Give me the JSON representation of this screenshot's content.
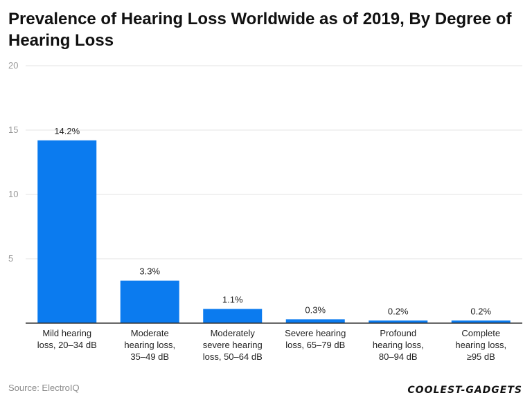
{
  "title": "Prevalence of Hearing Loss Worldwide as of 2019, By Degree of Hearing Loss",
  "source": "Source: ElectroIQ",
  "logo_text": "COOLEST-GADGETS",
  "colors": {
    "bar": "#0b7bef",
    "grid": "#e3e3e3",
    "axis": "#333333"
  },
  "chart_data": {
    "type": "bar",
    "title": "Prevalence of Hearing Loss Worldwide as of 2019, By Degree of Hearing Loss",
    "xlabel": "",
    "ylabel": "",
    "ylim": [
      0,
      20
    ],
    "yticks": [
      0,
      5,
      10,
      15,
      20
    ],
    "ytick_labels": [
      "",
      "5",
      "10",
      "15",
      "20"
    ],
    "grid": true,
    "categories": [
      [
        "Mild hearing",
        "loss, 20–34 dB"
      ],
      [
        "Moderate",
        "hearing loss,",
        "35–49 dB"
      ],
      [
        "Moderately",
        "severe hearing",
        "loss, 50–64 dB"
      ],
      [
        "Severe hearing",
        "loss, 65–79 dB"
      ],
      [
        "Profound",
        "hearing loss,",
        "80–94 dB"
      ],
      [
        "Complete",
        "hearing loss,",
        "≥95 dB"
      ]
    ],
    "values": [
      14.2,
      3.3,
      1.1,
      0.3,
      0.2,
      0.2
    ],
    "data_labels": [
      "14.2%",
      "3.3%",
      "1.1%",
      "0.3%",
      "0.2%",
      "0.2%"
    ]
  }
}
